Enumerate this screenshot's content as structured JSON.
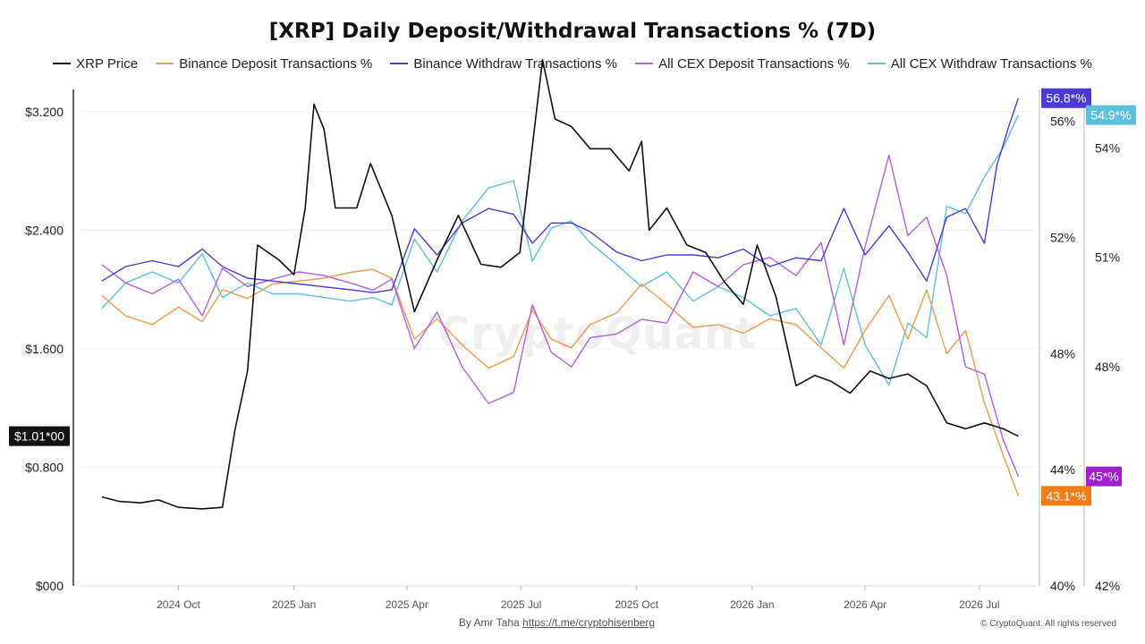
{
  "title": "[XRP] Daily Deposit/Withdrawal Transactions % (7D)",
  "legend": [
    {
      "label": "XRP Price",
      "color": "#111111"
    },
    {
      "label": "Binance Deposit Transactions %",
      "color": "#f2994a"
    },
    {
      "label": "Binance Withdraw Transactions %",
      "color": "#4b3bd6"
    },
    {
      "label": "All CEX Deposit Transactions %",
      "color": "#b65ee0"
    },
    {
      "label": "All CEX Withdraw Transactions %",
      "color": "#5cc1dd"
    }
  ],
  "watermark": "CryptoQuant",
  "footer": {
    "credit_prefix": "By Amr Taha",
    "credit_link": "https://t.me/cryptohisenberg",
    "copyright": "© CryptoQuant. All rights reserved"
  },
  "chart_data": {
    "type": "line",
    "x_ticks": [
      "2024 Oct",
      "2025 Jan",
      "2025 Apr",
      "2025 Jul",
      "2025 Oct",
      "2026 Jan",
      "2026 Apr",
      "2026 Jul"
    ],
    "x_tick_dates": [
      "2024-10-01",
      "2025-01-01",
      "2025-04-01",
      "2025-07-01",
      "2025-10-01",
      "2026-01-01",
      "2026-04-01",
      "2026-07-01"
    ],
    "axes": {
      "price": {
        "ticks": [
          "$000",
          "$0.800",
          "$1.600",
          "$2.400",
          "$3.200"
        ],
        "range": [
          0,
          3.35
        ]
      },
      "binance_pct": {
        "ticks": [
          "40%",
          "44%",
          "48%",
          "52%",
          "56%"
        ],
        "range": [
          40,
          57.1
        ]
      },
      "cex_pct": {
        "ticks": [
          "42%",
          "45%",
          "48%",
          "51%",
          "54%"
        ],
        "range": [
          42,
          55.6
        ]
      }
    },
    "last_value_badges": [
      {
        "label": "$1.01*00",
        "axis": "price",
        "value": 1.01,
        "color": "#111111"
      },
      {
        "label": "56.8*%",
        "axis": "binance_pct",
        "value": 56.8,
        "color": "#4b3bd6"
      },
      {
        "label": "54.9*%",
        "axis": "cex_pct",
        "value": 54.9,
        "color": "#5cc1dd"
      },
      {
        "label": "43.1*%",
        "axis": "binance_pct",
        "value": 43.1,
        "color": "#f07d1a"
      },
      {
        "label": "45*%",
        "axis": "cex_pct",
        "value": 45.0,
        "color": "#a020d0"
      }
    ],
    "series": [
      {
        "name": "XRP Price",
        "axis": "price",
        "color": "#111111",
        "points": [
          [
            "2024-08-01",
            0.6
          ],
          [
            "2024-08-15",
            0.57
          ],
          [
            "2024-09-01",
            0.56
          ],
          [
            "2024-09-15",
            0.58
          ],
          [
            "2024-10-01",
            0.53
          ],
          [
            "2024-10-20",
            0.52
          ],
          [
            "2024-11-05",
            0.53
          ],
          [
            "2024-11-15",
            1.05
          ],
          [
            "2024-11-25",
            1.45
          ],
          [
            "2024-12-03",
            2.3
          ],
          [
            "2024-12-20",
            2.2
          ],
          [
            "2025-01-01",
            2.1
          ],
          [
            "2025-01-10",
            2.55
          ],
          [
            "2025-01-17",
            3.25
          ],
          [
            "2025-01-25",
            3.08
          ],
          [
            "2025-02-03",
            2.55
          ],
          [
            "2025-02-20",
            2.55
          ],
          [
            "2025-03-03",
            2.85
          ],
          [
            "2025-03-20",
            2.5
          ],
          [
            "2025-04-07",
            1.85
          ],
          [
            "2025-04-25",
            2.2
          ],
          [
            "2025-05-12",
            2.5
          ],
          [
            "2025-05-30",
            2.17
          ],
          [
            "2025-06-15",
            2.15
          ],
          [
            "2025-06-30",
            2.25
          ],
          [
            "2025-07-18",
            3.55
          ],
          [
            "2025-07-28",
            3.15
          ],
          [
            "2025-08-10",
            3.1
          ],
          [
            "2025-08-25",
            2.95
          ],
          [
            "2025-09-10",
            2.95
          ],
          [
            "2025-09-25",
            2.8
          ],
          [
            "2025-10-05",
            3.0
          ],
          [
            "2025-10-11",
            2.4
          ],
          [
            "2025-10-25",
            2.55
          ],
          [
            "2025-11-10",
            2.3
          ],
          [
            "2025-11-25",
            2.25
          ],
          [
            "2025-12-10",
            2.05
          ],
          [
            "2025-12-25",
            1.9
          ],
          [
            "2026-01-05",
            2.3
          ],
          [
            "2026-01-20",
            1.95
          ],
          [
            "2026-02-05",
            1.35
          ],
          [
            "2026-02-20",
            1.42
          ],
          [
            "2026-03-05",
            1.38
          ],
          [
            "2026-03-20",
            1.3
          ],
          [
            "2026-04-05",
            1.45
          ],
          [
            "2026-04-20",
            1.4
          ],
          [
            "2026-05-05",
            1.43
          ],
          [
            "2026-05-20",
            1.35
          ],
          [
            "2026-06-05",
            1.1
          ],
          [
            "2026-06-20",
            1.06
          ],
          [
            "2026-07-05",
            1.1
          ],
          [
            "2026-07-20",
            1.06
          ],
          [
            "2026-08-01",
            1.01
          ]
        ]
      },
      {
        "name": "Binance Deposit Transactions %",
        "axis": "binance_pct",
        "color": "#f2994a",
        "points": [
          [
            "2024-08-01",
            50.0
          ],
          [
            "2024-08-20",
            49.3
          ],
          [
            "2024-09-10",
            49.0
          ],
          [
            "2024-10-01",
            49.6
          ],
          [
            "2024-10-20",
            49.1
          ],
          [
            "2024-11-05",
            50.2
          ],
          [
            "2024-11-25",
            49.9
          ],
          [
            "2024-12-15",
            50.4
          ],
          [
            "2025-01-05",
            50.5
          ],
          [
            "2025-01-25",
            50.6
          ],
          [
            "2025-02-15",
            50.8
          ],
          [
            "2025-03-05",
            50.9
          ],
          [
            "2025-03-20",
            50.6
          ],
          [
            "2025-04-07",
            48.5
          ],
          [
            "2025-04-25",
            49.2
          ],
          [
            "2025-05-15",
            48.3
          ],
          [
            "2025-06-05",
            47.5
          ],
          [
            "2025-06-25",
            47.9
          ],
          [
            "2025-07-10",
            49.5
          ],
          [
            "2025-07-25",
            48.5
          ],
          [
            "2025-08-10",
            48.2
          ],
          [
            "2025-08-25",
            49.0
          ],
          [
            "2025-09-15",
            49.4
          ],
          [
            "2025-10-05",
            50.4
          ],
          [
            "2025-10-25",
            49.7
          ],
          [
            "2025-11-15",
            48.9
          ],
          [
            "2025-12-05",
            49.0
          ],
          [
            "2025-12-25",
            48.7
          ],
          [
            "2026-01-15",
            49.2
          ],
          [
            "2026-02-05",
            49.0
          ],
          [
            "2026-02-25",
            48.2
          ],
          [
            "2026-03-15",
            47.5
          ],
          [
            "2026-04-01",
            48.8
          ],
          [
            "2026-04-20",
            50.0
          ],
          [
            "2026-05-05",
            48.5
          ],
          [
            "2026-05-20",
            50.2
          ],
          [
            "2026-06-05",
            48.0
          ],
          [
            "2026-06-20",
            48.8
          ],
          [
            "2026-07-05",
            46.3
          ],
          [
            "2026-07-20",
            44.5
          ],
          [
            "2026-08-01",
            43.1
          ]
        ]
      },
      {
        "name": "Binance Withdraw Transactions %",
        "axis": "binance_pct",
        "color": "#4b3bd6",
        "points": [
          [
            "2024-08-01",
            50.5
          ],
          [
            "2024-08-20",
            51.0
          ],
          [
            "2024-09-10",
            51.2
          ],
          [
            "2024-10-01",
            51.0
          ],
          [
            "2024-10-20",
            51.6
          ],
          [
            "2024-11-05",
            51.0
          ],
          [
            "2024-11-25",
            50.6
          ],
          [
            "2024-12-15",
            50.5
          ],
          [
            "2025-01-05",
            50.4
          ],
          [
            "2025-01-25",
            50.3
          ],
          [
            "2025-02-15",
            50.2
          ],
          [
            "2025-03-05",
            50.1
          ],
          [
            "2025-03-20",
            50.2
          ],
          [
            "2025-04-07",
            52.3
          ],
          [
            "2025-04-25",
            51.4
          ],
          [
            "2025-05-15",
            52.5
          ],
          [
            "2025-06-05",
            53.0
          ],
          [
            "2025-06-25",
            52.8
          ],
          [
            "2025-07-10",
            51.8
          ],
          [
            "2025-07-25",
            52.5
          ],
          [
            "2025-08-10",
            52.5
          ],
          [
            "2025-08-25",
            52.2
          ],
          [
            "2025-09-15",
            51.5
          ],
          [
            "2025-10-05",
            51.2
          ],
          [
            "2025-10-25",
            51.4
          ],
          [
            "2025-11-15",
            51.4
          ],
          [
            "2025-12-05",
            51.3
          ],
          [
            "2025-12-25",
            51.6
          ],
          [
            "2026-01-15",
            51.0
          ],
          [
            "2026-02-05",
            51.3
          ],
          [
            "2026-02-25",
            51.2
          ],
          [
            "2026-03-15",
            53.0
          ],
          [
            "2026-04-01",
            51.4
          ],
          [
            "2026-04-20",
            52.4
          ],
          [
            "2026-05-05",
            51.5
          ],
          [
            "2026-05-20",
            50.5
          ],
          [
            "2026-06-05",
            52.7
          ],
          [
            "2026-06-20",
            53.0
          ],
          [
            "2026-07-05",
            51.8
          ],
          [
            "2026-07-15",
            54.5
          ],
          [
            "2026-07-25",
            55.9
          ],
          [
            "2026-08-01",
            56.8
          ]
        ]
      },
      {
        "name": "All CEX Deposit Transactions %",
        "axis": "cex_pct",
        "color": "#b65ee0",
        "points": [
          [
            "2024-08-01",
            50.8
          ],
          [
            "2024-08-20",
            50.3
          ],
          [
            "2024-09-10",
            50.0
          ],
          [
            "2024-10-01",
            50.4
          ],
          [
            "2024-10-20",
            49.4
          ],
          [
            "2024-11-05",
            50.7
          ],
          [
            "2024-11-25",
            50.2
          ],
          [
            "2024-12-15",
            50.4
          ],
          [
            "2025-01-05",
            50.6
          ],
          [
            "2025-01-25",
            50.5
          ],
          [
            "2025-02-15",
            50.3
          ],
          [
            "2025-03-05",
            50.1
          ],
          [
            "2025-03-20",
            50.4
          ],
          [
            "2025-04-07",
            48.5
          ],
          [
            "2025-04-25",
            49.5
          ],
          [
            "2025-05-15",
            48.0
          ],
          [
            "2025-06-05",
            47.0
          ],
          [
            "2025-06-25",
            47.3
          ],
          [
            "2025-07-10",
            49.7
          ],
          [
            "2025-07-25",
            48.4
          ],
          [
            "2025-08-10",
            48.0
          ],
          [
            "2025-08-25",
            48.8
          ],
          [
            "2025-09-15",
            48.9
          ],
          [
            "2025-10-05",
            49.3
          ],
          [
            "2025-10-25",
            49.2
          ],
          [
            "2025-11-15",
            50.6
          ],
          [
            "2025-12-05",
            50.2
          ],
          [
            "2025-12-25",
            50.8
          ],
          [
            "2026-01-15",
            51.0
          ],
          [
            "2026-02-05",
            50.5
          ],
          [
            "2026-02-25",
            51.4
          ],
          [
            "2026-03-15",
            48.6
          ],
          [
            "2026-04-01",
            51.3
          ],
          [
            "2026-04-20",
            53.8
          ],
          [
            "2026-05-05",
            51.6
          ],
          [
            "2026-05-20",
            52.1
          ],
          [
            "2026-06-05",
            50.5
          ],
          [
            "2026-06-20",
            48.0
          ],
          [
            "2026-07-05",
            47.8
          ],
          [
            "2026-07-20",
            46.0
          ],
          [
            "2026-08-01",
            45.0
          ]
        ]
      },
      {
        "name": "All CEX Withdraw Transactions %",
        "axis": "cex_pct",
        "color": "#5cc1dd",
        "points": [
          [
            "2024-08-01",
            49.6
          ],
          [
            "2024-08-20",
            50.3
          ],
          [
            "2024-09-10",
            50.6
          ],
          [
            "2024-10-01",
            50.3
          ],
          [
            "2024-10-20",
            51.1
          ],
          [
            "2024-11-05",
            49.9
          ],
          [
            "2024-11-25",
            50.3
          ],
          [
            "2024-12-15",
            50.0
          ],
          [
            "2025-01-05",
            50.0
          ],
          [
            "2025-01-25",
            49.9
          ],
          [
            "2025-02-15",
            49.8
          ],
          [
            "2025-03-05",
            49.9
          ],
          [
            "2025-03-20",
            49.7
          ],
          [
            "2025-04-07",
            51.5
          ],
          [
            "2025-04-25",
            50.6
          ],
          [
            "2025-05-15",
            52.0
          ],
          [
            "2025-06-05",
            52.9
          ],
          [
            "2025-06-25",
            53.1
          ],
          [
            "2025-07-10",
            50.9
          ],
          [
            "2025-07-25",
            51.8
          ],
          [
            "2025-08-10",
            52.0
          ],
          [
            "2025-08-25",
            51.4
          ],
          [
            "2025-09-15",
            50.8
          ],
          [
            "2025-10-05",
            50.2
          ],
          [
            "2025-10-25",
            50.6
          ],
          [
            "2025-11-15",
            49.8
          ],
          [
            "2025-12-05",
            50.2
          ],
          [
            "2025-12-25",
            49.9
          ],
          [
            "2026-01-15",
            49.4
          ],
          [
            "2026-02-05",
            49.6
          ],
          [
            "2026-02-25",
            48.6
          ],
          [
            "2026-03-15",
            50.7
          ],
          [
            "2026-04-01",
            48.6
          ],
          [
            "2026-04-20",
            47.5
          ],
          [
            "2026-05-05",
            49.2
          ],
          [
            "2026-05-20",
            48.8
          ],
          [
            "2026-06-05",
            52.4
          ],
          [
            "2026-06-20",
            52.2
          ],
          [
            "2026-07-05",
            53.2
          ],
          [
            "2026-07-20",
            54.0
          ],
          [
            "2026-08-01",
            54.9
          ]
        ]
      }
    ]
  }
}
